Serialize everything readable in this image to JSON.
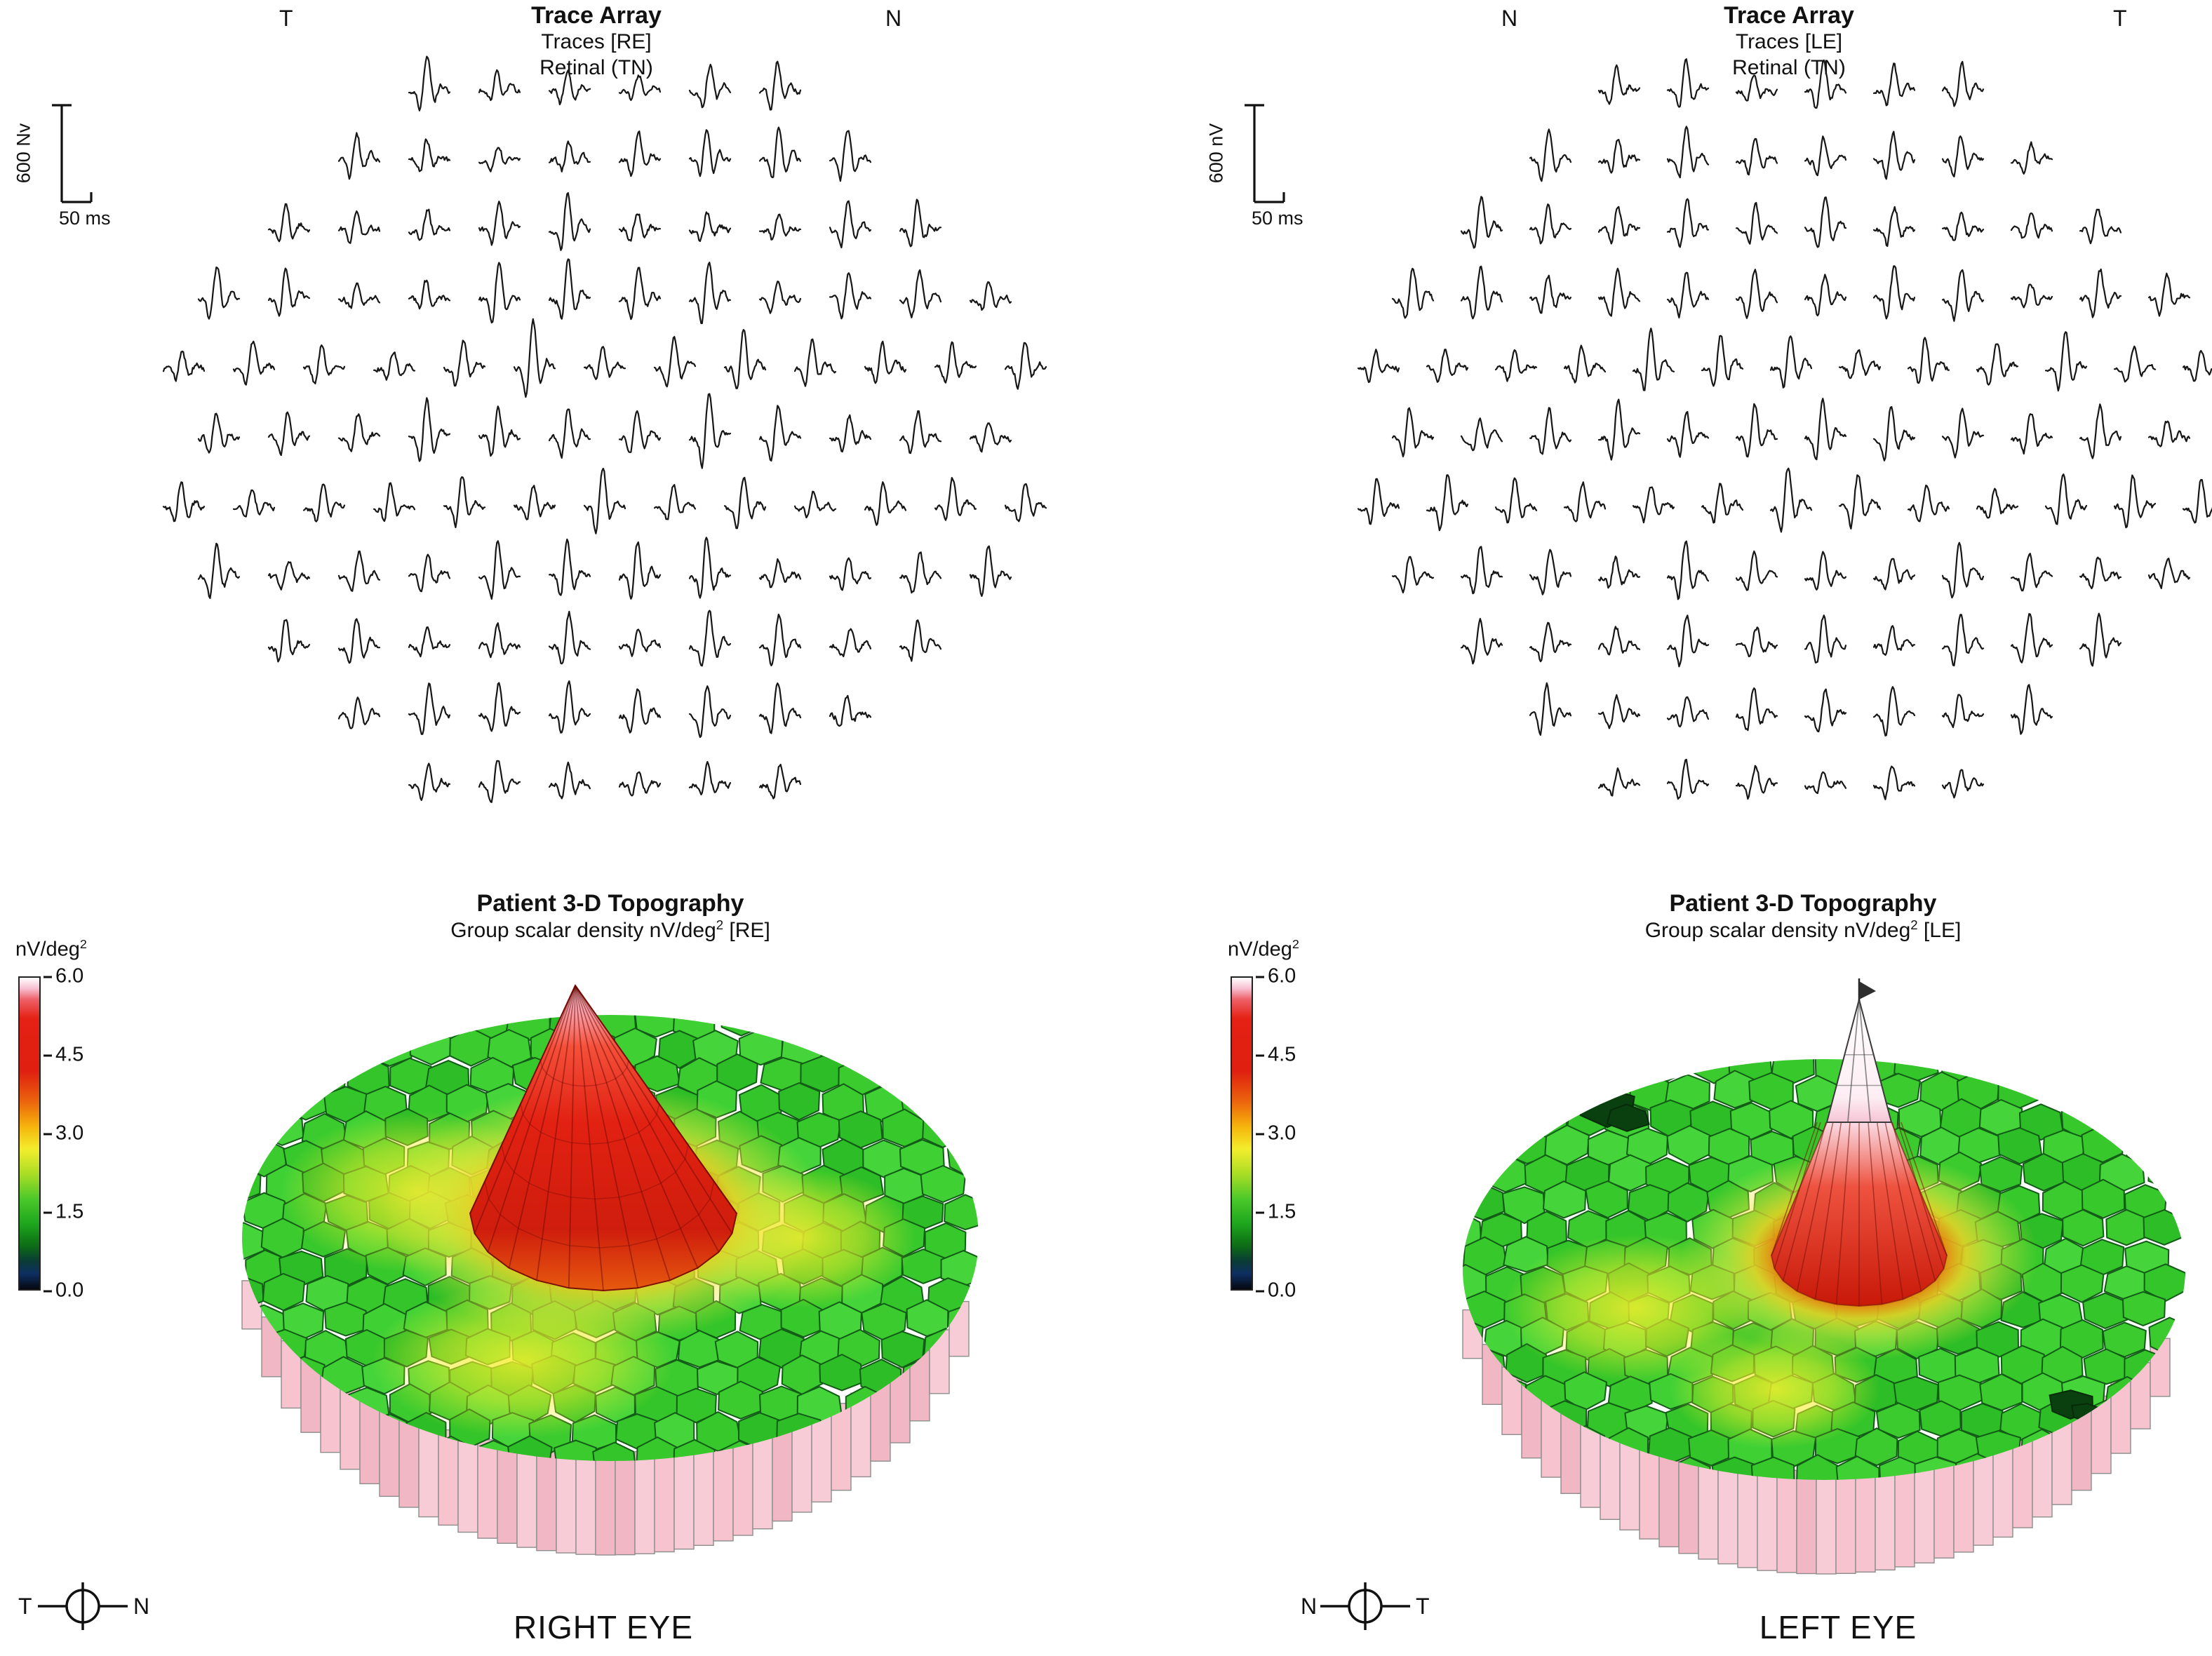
{
  "panels": {
    "trace_re": {
      "title": "Trace Array",
      "subtitle1": "Traces [RE]",
      "subtitle2": "Retinal (TN)",
      "corner_left": "T",
      "corner_right": "N",
      "scale_v": "600 Nv",
      "scale_h": "50 ms"
    },
    "trace_le": {
      "title": "Trace Array",
      "subtitle1": "Traces [LE]",
      "subtitle2": "Retinal (TN)",
      "corner_left": "N",
      "corner_right": "T",
      "scale_v": "600 nV",
      "scale_h": "50 ms"
    },
    "topo_re": {
      "title": "Patient 3-D Topography",
      "sub_pre": "Group scalar density nV/deg",
      "sub_sup": "2",
      "sub_post": " [RE]",
      "cb_pre": "nV/deg",
      "cb_sup": "2",
      "ticks": [
        "6.0",
        "4.5",
        "3.0",
        "1.5",
        "0.0"
      ],
      "caption": "RIGHT EYE",
      "compass_left": "T",
      "compass_right": "N"
    },
    "topo_le": {
      "title": "Patient 3-D Topography",
      "sub_pre": "Group scalar density nV/deg",
      "sub_sup": "2",
      "sub_post": " [LE]",
      "cb_pre": "nV/deg",
      "cb_sup": "2",
      "ticks": [
        "6.0",
        "4.5",
        "3.0",
        "1.5",
        "0.0"
      ],
      "caption": "LEFT EYE",
      "compass_left": "N",
      "compass_right": "T"
    }
  },
  "palette": {
    "trace_color": "#161616",
    "greens": [
      "#3bcb2e",
      "#33c529",
      "#45d53a",
      "#2dbd26",
      "#3fd134",
      "#37c82c"
    ],
    "green_stroke": "#135c18",
    "skirt_pinks": [
      "#f6c3cf",
      "#f2b7c5",
      "#f8ccd6"
    ],
    "skirt_stroke": "#8d8d8d",
    "yellow": "#f3ee2c",
    "peak_core": "#c81505",
    "peak_red": "#e02112",
    "spike_white": "#ffffff",
    "blob_dark_green": "#0a3f10"
  },
  "chart_data": [
    {
      "type": "trace_array",
      "eye": "right",
      "title": "Trace Array",
      "subtitles": [
        "Traces [RE]",
        "Retinal (TN)"
      ],
      "orientation": {
        "left": "T",
        "right": "N"
      },
      "scale_bar": {
        "vertical": "600 Nv",
        "horizontal": "50 ms"
      },
      "rows": [
        6,
        8,
        10,
        12,
        13,
        12,
        13,
        12,
        10,
        8,
        6
      ],
      "waveform": "multifocal ERG traces (N1-P1 complexes), noisy squiggles, larger amplitude centrally",
      "seed": 11
    },
    {
      "type": "trace_array",
      "eye": "left",
      "title": "Trace Array",
      "subtitles": [
        "Traces [LE]",
        "Retinal (TN)"
      ],
      "orientation": {
        "left": "N",
        "right": "T"
      },
      "scale_bar": {
        "vertical": "600 nV",
        "horizontal": "50 ms"
      },
      "rows": [
        6,
        8,
        10,
        12,
        13,
        12,
        13,
        12,
        10,
        8,
        6
      ],
      "waveform": "multifocal ERG traces (N1-P1 complexes), noisy squiggles, larger amplitude centrally",
      "seed": 77
    },
    {
      "type": "3d_topography",
      "eye": "right",
      "title": "Patient 3-D Topography",
      "subtitle": "Group scalar density nV/deg2 [RE]",
      "caption": "RIGHT EYE",
      "orientation": {
        "left": "T",
        "right": "N"
      },
      "colorbar": {
        "label": "nV/deg2",
        "min": 0.0,
        "max": 6.0,
        "ticks": [
          6.0,
          4.5,
          3.0,
          1.5,
          0.0
        ]
      },
      "surface": {
        "background_density": "~1.5 (green hexagonal mosaic)",
        "peak_density": "~6.0",
        "peak_shape": "broad central red cone with pink-white apex",
        "yellow_zones": "paracentral yellow patches around and flanking the peak",
        "skirt": "pink hexagonal column sides around lower rim"
      },
      "seed": 5
    },
    {
      "type": "3d_topography",
      "eye": "left",
      "title": "Patient 3-D Topography",
      "subtitle": "Group scalar density nV/deg2 [LE]",
      "caption": "LEFT EYE",
      "orientation": {
        "left": "N",
        "right": "T"
      },
      "colorbar": {
        "label": "nV/deg2",
        "min": 0.0,
        "max": 6.0,
        "ticks": [
          6.0,
          4.5,
          3.0,
          1.5,
          0.0
        ]
      },
      "surface": {
        "background_density": "~1.5 (green hexagonal mosaic)",
        "peak_density": ">6.0 (off-scale white spike)",
        "peak_shape": "tall narrow white central spike with red-orange base",
        "yellow_zones": "infero-temporal yellow patches",
        "artifacts": "two dark green depressions (upper-left edge, lower-right edge)",
        "skirt": "pink hexagonal column sides around lower rim"
      },
      "seed": 9
    }
  ]
}
